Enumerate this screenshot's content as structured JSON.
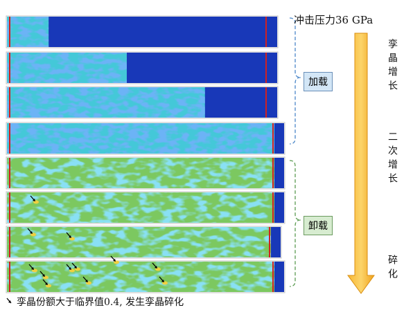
{
  "header": {
    "title": "冲击压力36 GPa"
  },
  "stages": [
    {
      "label": "加载"
    },
    {
      "label": "卸载"
    }
  ],
  "phases": [
    {
      "label": "孪晶增长"
    },
    {
      "label": "二次增长"
    },
    {
      "label": "碎化"
    }
  ],
  "legend": {
    "text": "孪晶份额大于临界值0.4, 发生孪晶碎化"
  }
}
